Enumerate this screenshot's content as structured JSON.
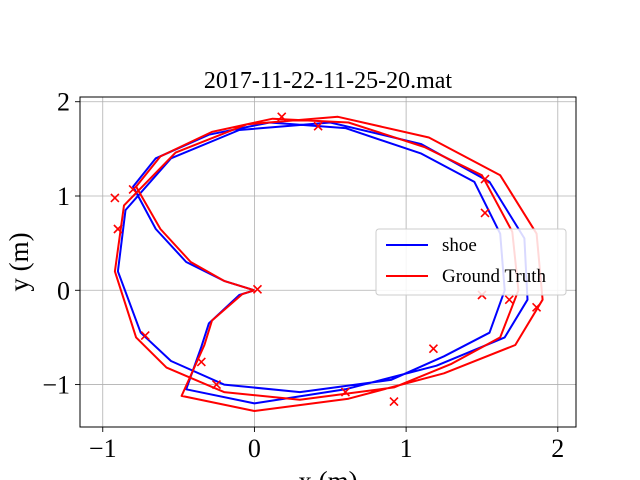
{
  "chart_data": {
    "type": "line",
    "title": "2017-11-22-11-25-20.mat",
    "xlabel": "x (m)",
    "ylabel": "y (m)",
    "xlim": [
      -1.15,
      2.12
    ],
    "ylim": [
      -1.45,
      2.05
    ],
    "xticks": [
      -1,
      0,
      1,
      2
    ],
    "yticks": [
      -1,
      0,
      1,
      2
    ],
    "xtick_labels": [
      "−1",
      "0",
      "1",
      "2"
    ],
    "ytick_labels": [
      "−1",
      "0",
      "1",
      "2"
    ],
    "grid": true,
    "legend_position": "right",
    "series": [
      {
        "name": "shoe",
        "color": "#0000ff",
        "points": [
          [
            0,
            0
          ],
          [
            -0.2,
            0.1
          ],
          [
            -0.45,
            0.3
          ],
          [
            -0.65,
            0.65
          ],
          [
            -0.8,
            1.1
          ],
          [
            -0.65,
            1.4
          ],
          [
            -0.3,
            1.65
          ],
          [
            0.1,
            1.78
          ],
          [
            0.6,
            1.72
          ],
          [
            1.1,
            1.45
          ],
          [
            1.45,
            1.15
          ],
          [
            1.62,
            0.6
          ],
          [
            1.65,
            0.0
          ],
          [
            1.55,
            -0.45
          ],
          [
            1.25,
            -0.7
          ],
          [
            0.9,
            -0.95
          ],
          [
            0.3,
            -1.08
          ],
          [
            -0.2,
            -1.0
          ],
          [
            -0.55,
            -0.75
          ],
          [
            -0.75,
            -0.45
          ],
          [
            -0.9,
            0.2
          ],
          [
            -0.85,
            0.85
          ],
          [
            -0.55,
            1.4
          ],
          [
            -0.1,
            1.7
          ],
          [
            0.5,
            1.78
          ],
          [
            1.1,
            1.55
          ],
          [
            1.55,
            1.15
          ],
          [
            1.78,
            0.55
          ],
          [
            1.8,
            -0.1
          ],
          [
            1.65,
            -0.5
          ],
          [
            1.2,
            -0.8
          ],
          [
            0.6,
            -1.05
          ],
          [
            0.0,
            -1.2
          ],
          [
            -0.45,
            -1.05
          ],
          [
            -0.35,
            -0.6
          ],
          [
            -0.3,
            -0.35
          ],
          [
            -0.1,
            -0.05
          ],
          [
            0,
            0
          ]
        ]
      },
      {
        "name": "Ground Truth",
        "color": "#ff0000",
        "points": [
          [
            0,
            0
          ],
          [
            -0.2,
            0.1
          ],
          [
            -0.42,
            0.3
          ],
          [
            -0.62,
            0.65
          ],
          [
            -0.78,
            1.1
          ],
          [
            -0.62,
            1.42
          ],
          [
            -0.28,
            1.68
          ],
          [
            0.12,
            1.82
          ],
          [
            0.62,
            1.78
          ],
          [
            1.12,
            1.52
          ],
          [
            1.5,
            1.22
          ],
          [
            1.7,
            0.62
          ],
          [
            1.74,
            0.0
          ],
          [
            1.62,
            -0.5
          ],
          [
            1.3,
            -0.78
          ],
          [
            0.92,
            -1.03
          ],
          [
            0.3,
            -1.16
          ],
          [
            -0.2,
            -1.08
          ],
          [
            -0.58,
            -0.82
          ],
          [
            -0.78,
            -0.5
          ],
          [
            -0.92,
            0.2
          ],
          [
            -0.86,
            0.9
          ],
          [
            -0.52,
            1.46
          ],
          [
            -0.05,
            1.76
          ],
          [
            0.55,
            1.84
          ],
          [
            1.15,
            1.62
          ],
          [
            1.62,
            1.22
          ],
          [
            1.86,
            0.6
          ],
          [
            1.9,
            -0.1
          ],
          [
            1.72,
            -0.58
          ],
          [
            1.25,
            -0.88
          ],
          [
            0.62,
            -1.15
          ],
          [
            0.0,
            -1.28
          ],
          [
            -0.48,
            -1.12
          ],
          [
            -0.33,
            -0.58
          ],
          [
            -0.28,
            -0.32
          ],
          [
            -0.08,
            -0.04
          ],
          [
            0,
            0
          ]
        ]
      }
    ],
    "markers": [
      [
        0.42,
        1.74
      ],
      [
        0.18,
        1.84
      ],
      [
        1.52,
        1.18
      ],
      [
        1.52,
        0.82
      ],
      [
        -0.8,
        1.07
      ],
      [
        -0.92,
        0.98
      ],
      [
        -0.9,
        0.65
      ],
      [
        -0.72,
        -0.48
      ],
      [
        -0.35,
        -0.76
      ],
      [
        -0.25,
        -1.0
      ],
      [
        0.6,
        -1.08
      ],
      [
        0.92,
        -1.18
      ],
      [
        1.18,
        -0.62
      ],
      [
        1.68,
        -0.1
      ],
      [
        1.86,
        -0.18
      ],
      [
        1.5,
        -0.05
      ],
      [
        0.02,
        0.01
      ]
    ]
  }
}
